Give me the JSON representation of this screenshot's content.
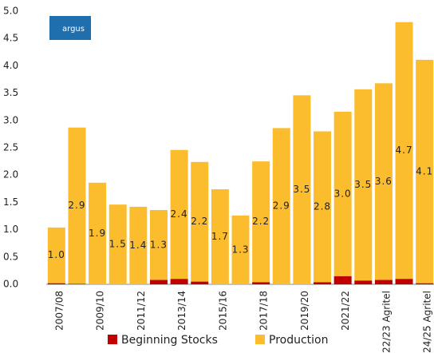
{
  "chart_data": {
    "type": "stacked_bar",
    "logo": "argus",
    "categories": [
      "2007/08",
      null,
      "2009/10",
      null,
      "2011/12",
      null,
      "2013/14",
      null,
      "2015/16",
      null,
      "2017/18",
      null,
      "2019/20",
      null,
      "2021/22",
      null,
      "22/23 Agritel",
      null,
      "24/25 Agritel"
    ],
    "series": [
      {
        "name": "Beginning Stocks",
        "color": "#c00000",
        "values": [
          0.02,
          0.01,
          0,
          0,
          0,
          0.08,
          0.1,
          0.05,
          0,
          0,
          0.04,
          0,
          0,
          0.04,
          0.15,
          0.07,
          0.08,
          0.1,
          0.02
        ]
      },
      {
        "name": "Production",
        "color": "#fbbd2e",
        "values": [
          1.02,
          2.86,
          1.86,
          1.46,
          1.42,
          1.28,
          2.36,
          2.19,
          1.74,
          1.26,
          2.21,
          2.86,
          3.46,
          2.76,
          3.01,
          3.5,
          3.6,
          4.7,
          4.09
        ],
        "value_labels": [
          "1.0",
          "2.9",
          "1.9",
          "1.5",
          "1.4",
          "1.3",
          "2.4",
          "2.2",
          "1.7",
          "1.3",
          "2.2",
          "2.9",
          "3.5",
          "2.8",
          "3.0",
          "3.5",
          "3.6",
          "4.7",
          "4.1"
        ]
      }
    ],
    "ylim": [
      0,
      5
    ],
    "yticks": [
      {
        "value": 0,
        "label": "0.0"
      },
      {
        "value": 0.5,
        "label": "0.5"
      },
      {
        "value": 1,
        "label": "1.0"
      },
      {
        "value": 1.5,
        "label": "1.5"
      },
      {
        "value": 2,
        "label": "2.0"
      },
      {
        "value": 2.5,
        "label": "2.5"
      },
      {
        "value": 3,
        "label": "3.0"
      },
      {
        "value": 3.5,
        "label": "3.5"
      },
      {
        "value": 4,
        "label": "4.0"
      },
      {
        "value": 4.5,
        "label": "4.5"
      },
      {
        "value": 5,
        "label": "5.0"
      }
    ],
    "grid": false
  }
}
